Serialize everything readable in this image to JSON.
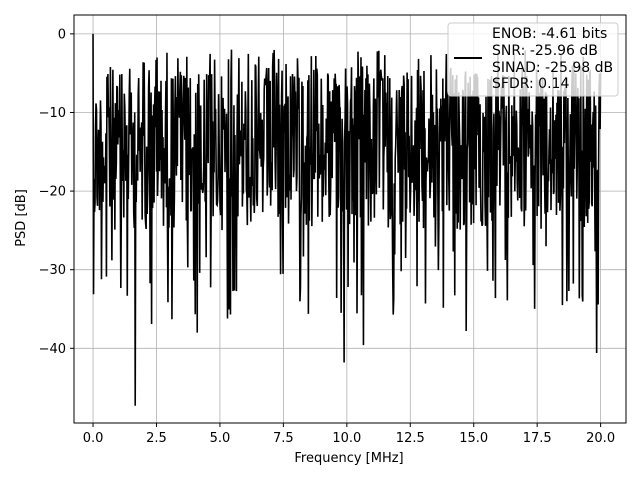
{
  "chart_data": {
    "type": "line",
    "xlabel": "Frequency [MHz]",
    "ylabel": "PSD [dB]",
    "xlim": [
      -0.75,
      21.0
    ],
    "ylim": [
      -49.5,
      2.4
    ],
    "grid": true,
    "x_ticks": [
      0.0,
      2.5,
      5.0,
      7.5,
      10.0,
      12.5,
      15.0,
      17.5,
      20.0
    ],
    "x_tick_labels": [
      "0.0",
      "2.5",
      "5.0",
      "7.5",
      "10.0",
      "12.5",
      "15.0",
      "17.5",
      "20.0"
    ],
    "y_ticks": [
      0,
      -10,
      -20,
      -30,
      -40
    ],
    "y_tick_labels": [
      "0",
      "−10",
      "−20",
      "−30",
      "−40"
    ],
    "legend": {
      "placement": "top-right",
      "entries": [
        "ENOB: -4.61 bits",
        "SNR: -25.96 dB",
        "SINAD: -25.98 dB",
        "SFDR: 0.14"
      ]
    },
    "series": [
      {
        "color": "#000000",
        "x_range": [
          0.0,
          20.0
        ],
        "points": 1024,
        "y_upper_envelope": -5,
        "y_lower_envelope": -25,
        "highlights": [
          {
            "x": 0.0,
            "y": 0.0
          },
          {
            "x": 5.45,
            "y": -2.0
          },
          {
            "x": 1.66,
            "y": -47.3
          },
          {
            "x": 9.9,
            "y": -41.8
          },
          {
            "x": 10.65,
            "y": -39.6
          },
          {
            "x": 19.85,
            "y": -40.6
          },
          {
            "x": 5.3,
            "y": -36.2
          },
          {
            "x": 3.1,
            "y": -36.3
          },
          {
            "x": 2.3,
            "y": -36.9
          },
          {
            "x": 14.7,
            "y": -37.8
          },
          {
            "x": 4.1,
            "y": -38.0
          }
        ]
      }
    ]
  }
}
